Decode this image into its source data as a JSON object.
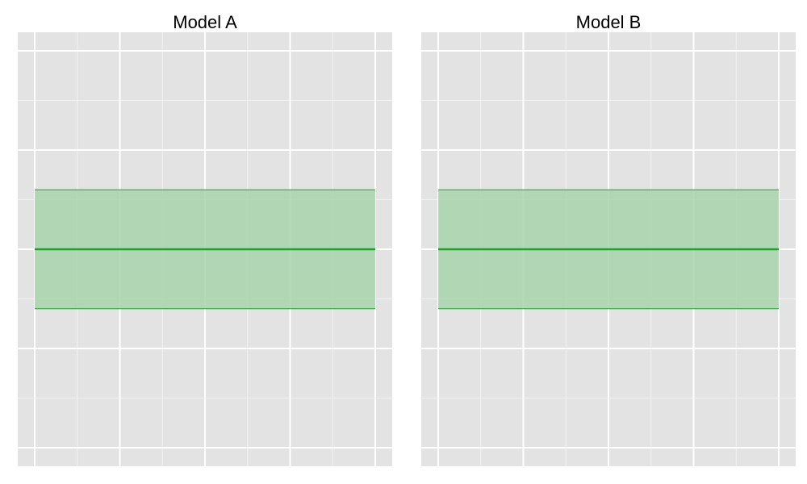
{
  "chart_data": [
    {
      "type": "area",
      "title": "Model A",
      "xlabel": "",
      "ylabel": "",
      "grid": true,
      "legend": "none",
      "x_range": [
        0,
        1
      ],
      "y_range": [
        0,
        1
      ],
      "series": [
        {
          "x": [
            0,
            1
          ],
          "y": [
            0.5,
            0.5
          ],
          "lower": [
            0.35,
            0.35
          ],
          "upper": [
            0.65,
            0.65
          ]
        }
      ],
      "colors": {
        "line": "#1fa22a",
        "band": "#a8d4ab",
        "panel_background": "#e3e3e3",
        "grid": "#ffffff"
      }
    },
    {
      "type": "area",
      "title": "Model B",
      "xlabel": "",
      "ylabel": "",
      "grid": true,
      "legend": "none",
      "x_range": [
        0,
        1
      ],
      "y_range": [
        0,
        1
      ],
      "series": [
        {
          "x": [
            0,
            1
          ],
          "y": [
            0.5,
            0.5
          ],
          "lower": [
            0.35,
            0.35
          ],
          "upper": [
            0.65,
            0.65
          ]
        }
      ],
      "colors": {
        "line": "#1fa22a",
        "band": "#a8d4ab",
        "panel_background": "#e3e3e3",
        "grid": "#ffffff"
      }
    }
  ]
}
